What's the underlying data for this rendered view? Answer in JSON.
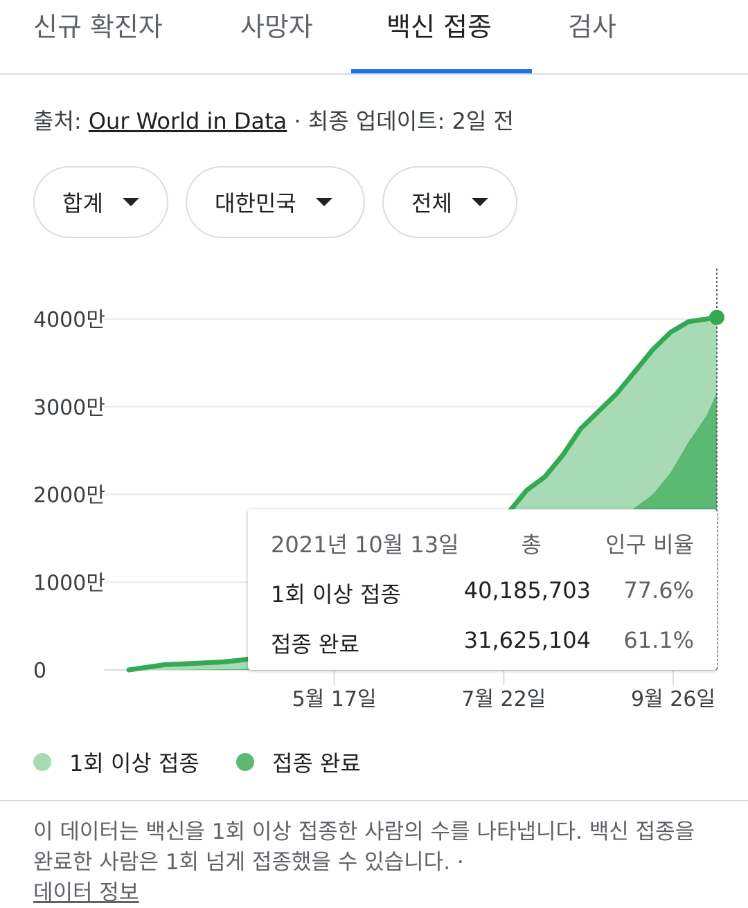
{
  "tabs": [
    {
      "label": "신규 확진자"
    },
    {
      "label": "사망자"
    },
    {
      "label": "백신 접종"
    },
    {
      "label": "검사"
    }
  ],
  "source": {
    "prefix": "출처:",
    "link": "Our World in Data",
    "suffix": "· 최종 업데이트: 2일 전"
  },
  "filters": [
    {
      "label": "합계"
    },
    {
      "label": "대한민국"
    },
    {
      "label": "전체"
    }
  ],
  "colors": {
    "accent": "#1a73e8",
    "first_dose": "#a8dbb5",
    "fully_vaccinated": "#5bb974",
    "line": "#34a853"
  },
  "chart_data": {
    "type": "area",
    "y_ticks": [
      {
        "value": 0,
        "label": "0"
      },
      {
        "value": 10000000,
        "label": "1000만"
      },
      {
        "value": 20000000,
        "label": "2000만"
      },
      {
        "value": 30000000,
        "label": "3000만"
      },
      {
        "value": 40000000,
        "label": "4000만"
      }
    ],
    "x_ticks": [
      {
        "date": "2021-05-17",
        "label": "5월 17일"
      },
      {
        "date": "2021-07-22",
        "label": "7월 22일"
      },
      {
        "date": "2021-09-26",
        "label": "9월 26일"
      }
    ],
    "x_range": [
      "2021-02-26",
      "2021-10-13"
    ],
    "ylim": [
      0,
      40000000
    ],
    "grid": true,
    "series": [
      {
        "name": "1회 이상 접종",
        "x": [
          "2021-02-26",
          "2021-03-05",
          "2021-03-12",
          "2021-03-20",
          "2021-03-27",
          "2021-04-03",
          "2021-04-10",
          "2021-04-17",
          "2021-04-24",
          "2021-05-01",
          "2021-05-08",
          "2021-05-15",
          "2021-05-22",
          "2021-05-29",
          "2021-06-05",
          "2021-06-12",
          "2021-06-19",
          "2021-06-26",
          "2021-07-03",
          "2021-07-10",
          "2021-07-17",
          "2021-07-24",
          "2021-07-31",
          "2021-08-07",
          "2021-08-14",
          "2021-08-21",
          "2021-08-28",
          "2021-09-04",
          "2021-09-11",
          "2021-09-18",
          "2021-09-25",
          "2021-10-02",
          "2021-10-09",
          "2021-10-13"
        ],
        "values": [
          0,
          300000,
          600000,
          700000,
          800000,
          900000,
          1100000,
          1400000,
          2200000,
          3000000,
          3500000,
          3800000,
          4500000,
          6000000,
          8500000,
          12000000,
          14500000,
          15300000,
          15600000,
          15700000,
          16500000,
          18000000,
          20500000,
          22000000,
          24500000,
          27500000,
          29500000,
          31500000,
          34000000,
          36500000,
          38500000,
          39700000,
          40000000,
          40185703
        ]
      },
      {
        "name": "접종 완료",
        "x": [
          "2021-02-26",
          "2021-03-12",
          "2021-03-27",
          "2021-04-10",
          "2021-04-24",
          "2021-05-08",
          "2021-05-22",
          "2021-06-05",
          "2021-06-19",
          "2021-06-26",
          "2021-07-03",
          "2021-07-10",
          "2021-07-17",
          "2021-07-24",
          "2021-07-31",
          "2021-08-07",
          "2021-08-14",
          "2021-08-21",
          "2021-08-28",
          "2021-09-04",
          "2021-09-11",
          "2021-09-18",
          "2021-09-25",
          "2021-10-02",
          "2021-10-09",
          "2021-10-13"
        ],
        "values": [
          0,
          0,
          50000,
          100000,
          200000,
          1000000,
          1800000,
          2200000,
          4000000,
          5000000,
          5500000,
          6000000,
          6400000,
          6800000,
          7000000,
          7400000,
          9000000,
          10500000,
          13500000,
          16000000,
          18500000,
          20000000,
          22500000,
          26000000,
          29000000,
          31625104
        ]
      }
    ],
    "tooltip": {
      "date": "2021년 10월 13일",
      "col_total": "총",
      "col_ratio": "인구 비율",
      "rows": [
        {
          "name": "1회 이상 접종",
          "value": "40,185,703",
          "pct": "77.6%"
        },
        {
          "name": "접종 완료",
          "value": "31,625,104",
          "pct": "61.1%"
        }
      ]
    }
  },
  "legend": [
    {
      "label": "1회 이상 접종"
    },
    {
      "label": "접종 완료"
    }
  ],
  "note": {
    "text": "이 데이터는 백신을 1회 이상 접종한 사람의 수를 나타냅니다. 백신 접종을 완료한 사람은 1회 넘게 접종했을 수 있습니다.",
    "separator": "·",
    "link": "데이터 정보"
  }
}
